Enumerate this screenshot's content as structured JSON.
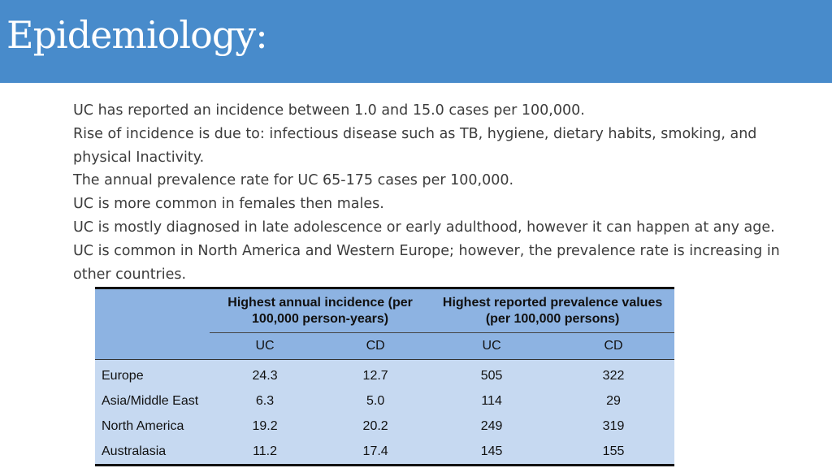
{
  "title": "Epidemiology:",
  "bullets": [
    "UC has reported an incidence between 1.0 and 15.0 cases per 100,000.",
    "Rise of incidence is due to: infectious disease such as TB, hygiene, dietary habits, smoking, and physical Inactivity.",
    "The annual prevalence rate for UC 65-175 cases per 100,000.",
    "UC is more common in females then males.",
    "UC is mostly diagnosed in late adolescence or early adulthood, however it can happen at any age.",
    "UC is common in North America and Western Europe; however, the prevalence rate is increasing in other countries."
  ],
  "table": {
    "group_headers": [
      "Highest annual incidence (per 100,000 person-years)",
      "Highest reported prevalence values (per 100,000 persons)"
    ],
    "sub_headers": [
      "UC",
      "CD",
      "UC",
      "CD"
    ],
    "rows": [
      {
        "region": "Europe",
        "values": [
          "24.3",
          "12.7",
          "505",
          "322"
        ]
      },
      {
        "region": "Asia/Middle East",
        "values": [
          "6.3",
          "5.0",
          "114",
          "29"
        ]
      },
      {
        "region": "North America",
        "values": [
          "19.2",
          "20.2",
          "249",
          "319"
        ]
      },
      {
        "region": "Australasia",
        "values": [
          "11.2",
          "17.4",
          "145",
          "155"
        ]
      }
    ],
    "colors": {
      "header": "#8db3e2",
      "body": "#c6d9f1",
      "titlebar": "#488bcb"
    }
  }
}
